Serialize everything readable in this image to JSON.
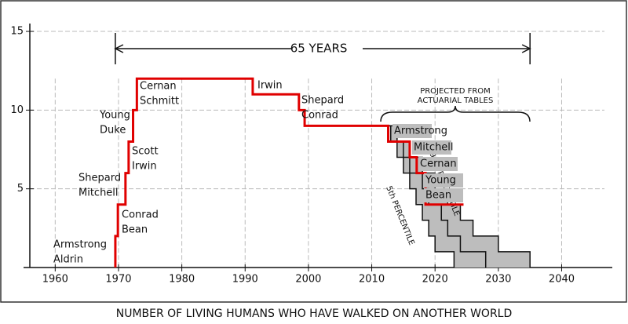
{
  "chart_data": {
    "type": "step",
    "title": "NUMBER OF LIVING HUMANS WHO HAVE WALKED ON ANOTHER WORLD",
    "xlim": [
      1955,
      2048
    ],
    "ylim": [
      0,
      15.5
    ],
    "xticks": [
      1960,
      1970,
      1980,
      1990,
      2000,
      2010,
      2020,
      2030,
      2040
    ],
    "yticks": [
      5,
      10,
      15
    ],
    "grid": true,
    "color": "#e00000",
    "x": [
      1969.5,
      1969.5,
      1969.9,
      1971.1,
      1971.6,
      1972.3,
      1972.9,
      1991.2,
      1998.5,
      1999.4,
      2012.6,
      2016,
      2017.1,
      2018.5,
      2024.5
    ],
    "values": [
      0,
      2,
      4,
      6,
      8,
      10,
      12,
      11,
      10,
      9,
      8,
      7,
      6,
      4,
      4
    ],
    "events": [
      [
        "Armstrong",
        "Aldrin"
      ],
      [
        "Conrad",
        "Bean"
      ],
      [
        "Shepard",
        "Mitchell"
      ],
      [
        "Scott",
        "Irwin"
      ],
      [
        "Young",
        "Duke"
      ],
      [
        "Cernan",
        "Schmitt"
      ],
      [
        "Irwin"
      ],
      [
        "Shepard",
        "Conrad"
      ],
      [
        "Armstrong"
      ],
      [
        "Mitchell"
      ],
      [
        "Cernan"
      ],
      [
        "Young",
        "Bean"
      ]
    ],
    "span": [
      1969.5,
      2035
    ],
    "span_label": "65 YEARS",
    "projection_note": [
      "PROJECTED FROM",
      "ACTUARIAL TABLES"
    ],
    "percentiles": [
      {
        "label": "5th PERCENTILE",
        "x": [
          2012,
          2013,
          2014,
          2015,
          2016,
          2017,
          2018,
          2019,
          2020,
          2021,
          2023
        ],
        "values": [
          9,
          8,
          7,
          6,
          5,
          4,
          3,
          2,
          1,
          1,
          0
        ]
      },
      {
        "label": "95th PERCENTILE",
        "x": [
          2012,
          2014,
          2016,
          2018,
          2020,
          2022,
          2024,
          2026,
          2028,
          2030,
          2035
        ],
        "values": [
          9,
          8,
          7,
          6,
          5,
          4,
          3,
          2,
          2,
          1,
          0
        ]
      }
    ],
    "median": {
      "x": [
        2012,
        2013,
        2015,
        2016,
        2018,
        2019,
        2021,
        2022,
        2024,
        2025,
        2028
      ],
      "values": [
        9,
        8,
        7,
        6,
        5,
        4,
        3,
        2,
        1,
        1,
        0
      ]
    }
  }
}
